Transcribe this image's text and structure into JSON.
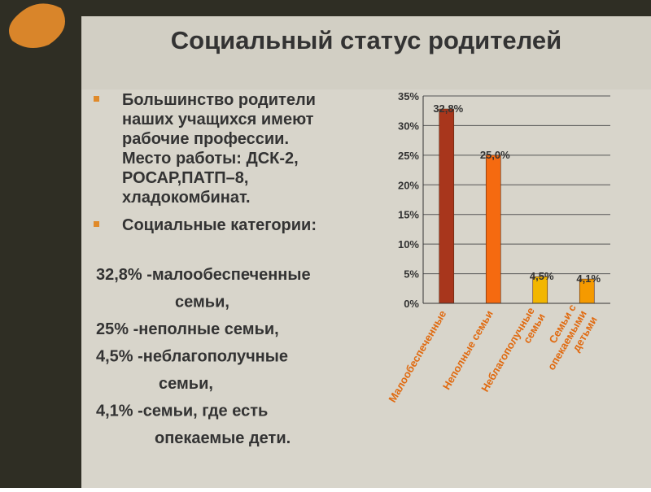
{
  "title": "Социальный статус родителей",
  "bullets": [
    [
      "Большинство родители",
      "наших учащихся имеют",
      "рабочие профессии.",
      "Место работы: ДСК-2,",
      "РОСАР,ПАТП–8,",
      "хладокомбинат."
    ],
    [
      "Социальные категории:"
    ]
  ],
  "lines": [
    "32,8% -малообеспеченные",
    "семьи,",
    "25% -неполные семьи,",
    "4,5% -неблагополучные",
    "семьи,",
    "4,1% -семьи, где есть",
    "опекаемые дети."
  ],
  "chart_data": {
    "type": "bar",
    "categories": [
      "Малообеспеченные",
      "Неполные семьи",
      "Неблагополучные\nсемьи",
      "Семьи с\nопекаемыми\nдетьми"
    ],
    "values": [
      32.8,
      25.0,
      4.5,
      4.1
    ],
    "value_labels": [
      "32,8%",
      "25,0%",
      "4,5%",
      "4,1%"
    ],
    "colors": [
      "#a8361c",
      "#f56a10",
      "#f2b600",
      "#f59a00"
    ],
    "ylim": [
      0,
      35
    ],
    "yticks": [
      {
        "value": 0,
        "label": "0%"
      },
      {
        "value": 5,
        "label": "5%"
      },
      {
        "value": 10,
        "label": "10%"
      },
      {
        "value": 15,
        "label": "15%"
      },
      {
        "value": 20,
        "label": "20%"
      },
      {
        "value": 25,
        "label": "25%"
      },
      {
        "value": 30,
        "label": "30%"
      },
      {
        "value": 35,
        "label": "35%"
      }
    ],
    "grid": true
  }
}
